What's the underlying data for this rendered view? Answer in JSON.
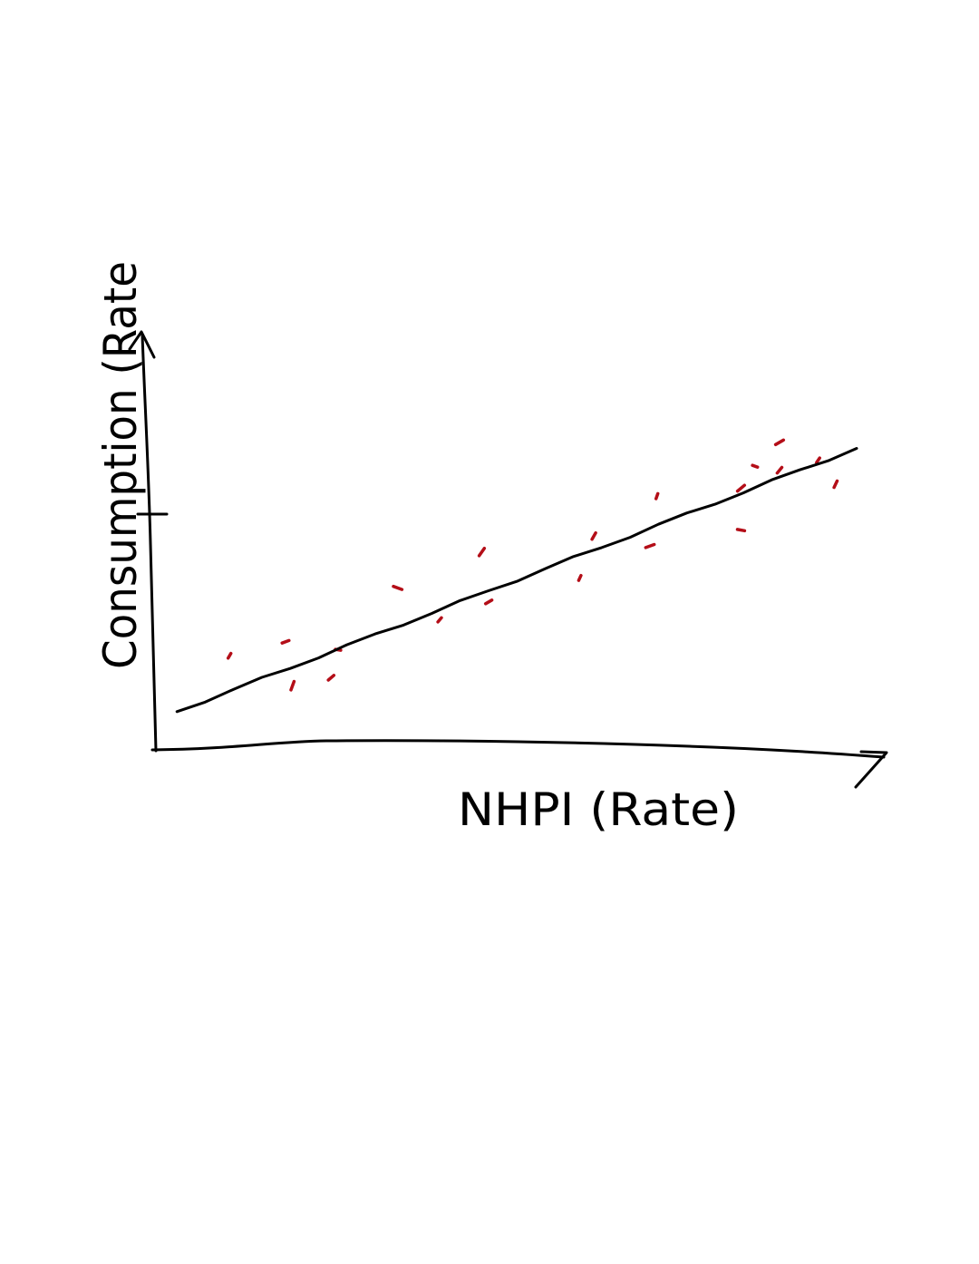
{
  "chart_data": {
    "type": "scatter",
    "title": "",
    "xlabel": "NHPI (Rate)",
    "ylabel": "Consumption (Rate",
    "xlim": [
      0,
      100
    ],
    "ylim": [
      0,
      100
    ],
    "grid": false,
    "legend": "none",
    "series": [
      {
        "kind": "points",
        "values": [
          [
            10.5,
            22.0
          ],
          [
            18.5,
            25.5
          ],
          [
            19.5,
            14.5
          ],
          [
            26.0,
            23.5
          ],
          [
            25.0,
            16.5
          ],
          [
            34.5,
            39.0
          ],
          [
            40.5,
            31.0
          ],
          [
            47.5,
            35.5
          ],
          [
            46.5,
            48.0
          ],
          [
            60.5,
            41.5
          ],
          [
            62.5,
            52.0
          ],
          [
            70.5,
            49.5
          ],
          [
            71.5,
            62.0
          ],
          [
            83.5,
            53.5
          ],
          [
            83.5,
            64.0
          ],
          [
            85.5,
            69.5
          ],
          [
            89.0,
            68.5
          ],
          [
            89.0,
            75.5
          ],
          [
            94.5,
            71.0
          ],
          [
            97.0,
            65.0
          ]
        ]
      },
      {
        "kind": "trend-line",
        "x": [
          3,
          100
        ],
        "y": [
          8,
          74
        ]
      }
    ],
    "colors": {
      "points": "#b40e18",
      "line": "#000000",
      "axes": "#000000"
    }
  }
}
